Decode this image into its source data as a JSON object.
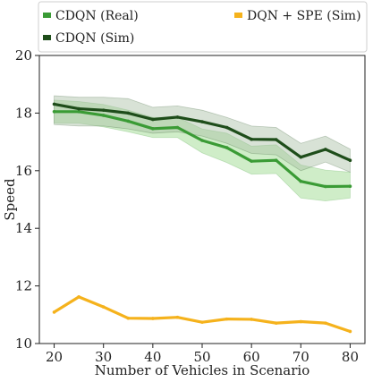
{
  "chart_data": {
    "type": "line",
    "xlabel": "Number of Vehicles in Scenario",
    "ylabel": "Speed",
    "xlim": [
      17,
      83
    ],
    "ylim": [
      10,
      20
    ],
    "xticks": [
      20,
      30,
      40,
      50,
      60,
      70,
      80
    ],
    "yticks": [
      10,
      12,
      14,
      16,
      18,
      20
    ],
    "x": [
      20,
      25,
      30,
      35,
      40,
      45,
      50,
      55,
      60,
      65,
      70,
      75,
      80
    ],
    "grid": false,
    "legend_position": "top",
    "series": [
      {
        "name": "CDQN (Real)",
        "color": "#3a9b35",
        "band_color": "#9fdc91",
        "values": [
          18.05,
          18.05,
          17.92,
          17.72,
          17.46,
          17.5,
          17.05,
          16.8,
          16.33,
          16.36,
          15.63,
          15.45,
          15.46
        ],
        "band_lower": [
          17.65,
          17.65,
          17.52,
          17.35,
          17.15,
          17.15,
          16.62,
          16.28,
          15.88,
          15.9,
          15.05,
          14.95,
          15.05
        ],
        "band_upper": [
          18.45,
          18.4,
          18.3,
          18.1,
          17.85,
          17.85,
          17.45,
          17.3,
          16.85,
          16.9,
          16.2,
          16.02,
          15.95
        ]
      },
      {
        "name": "CDQN (Sim)",
        "color": "#1e4d1a",
        "band_color": "#a9bfa5",
        "values": [
          18.31,
          18.15,
          18.1,
          18.0,
          17.78,
          17.86,
          17.7,
          17.5,
          17.09,
          17.08,
          16.47,
          16.74,
          16.36
        ],
        "band_lower": [
          17.6,
          17.55,
          17.55,
          17.45,
          17.3,
          17.35,
          17.2,
          16.95,
          16.6,
          16.55,
          16.0,
          16.3,
          15.95
        ],
        "band_upper": [
          18.6,
          18.55,
          18.55,
          18.5,
          18.2,
          18.25,
          18.1,
          17.85,
          17.55,
          17.5,
          16.95,
          17.2,
          16.75
        ]
      },
      {
        "name": "DQN + SPE (Sim)",
        "color": "#f5b21c",
        "values": [
          11.09,
          11.62,
          11.27,
          10.88,
          10.87,
          10.91,
          10.74,
          10.85,
          10.84,
          10.71,
          10.76,
          10.71,
          10.42
        ]
      }
    ]
  }
}
